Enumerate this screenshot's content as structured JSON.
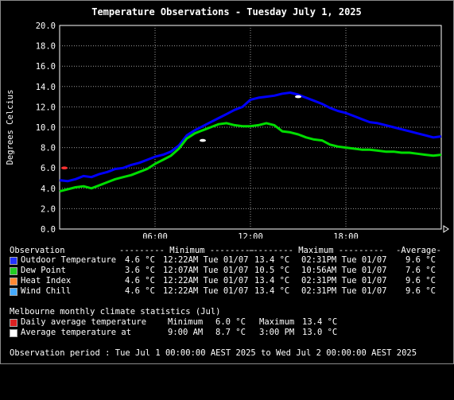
{
  "chart_data": {
    "type": "line",
    "title": "Temperature Observations - Tuesday July 1, 2025",
    "ylabel": "Degrees Celcius",
    "ylim": [
      0,
      20
    ],
    "y_ticks": [
      "0.0",
      "2.0",
      "4.0",
      "6.0",
      "8.0",
      "10.0",
      "12.0",
      "14.0",
      "16.0",
      "18.0",
      "20.0"
    ],
    "x_range_hours": [
      0,
      24
    ],
    "x_ticks": [
      {
        "hour": 6,
        "label": "06:00"
      },
      {
        "hour": 12,
        "label": "12:00"
      },
      {
        "hour": 18,
        "label": "18:00"
      }
    ],
    "grid": true,
    "series": [
      {
        "name": "Outdoor Temperature",
        "color": "#0000ff",
        "x": [
          0,
          0.5,
          1,
          1.5,
          2,
          2.5,
          3,
          3.5,
          4,
          4.5,
          5,
          5.5,
          6,
          6.5,
          7,
          7.5,
          8,
          8.5,
          9,
          9.5,
          10,
          10.5,
          11,
          11.5,
          12,
          12.5,
          13,
          13.5,
          14,
          14.5,
          15,
          15.5,
          16,
          16.5,
          17,
          17.5,
          18,
          18.5,
          19,
          19.5,
          20,
          20.5,
          21,
          21.5,
          22,
          22.5,
          23,
          23.5,
          24
        ],
        "y": [
          4.8,
          4.7,
          4.9,
          5.2,
          5.1,
          5.4,
          5.6,
          5.9,
          6.0,
          6.3,
          6.5,
          6.8,
          7.1,
          7.3,
          7.6,
          8.2,
          9.2,
          9.7,
          10.1,
          10.5,
          10.9,
          11.3,
          11.7,
          12.0,
          12.7,
          12.9,
          13.0,
          13.1,
          13.3,
          13.4,
          13.2,
          12.9,
          12.6,
          12.3,
          11.9,
          11.6,
          11.4,
          11.1,
          10.8,
          10.5,
          10.4,
          10.2,
          10.0,
          9.8,
          9.6,
          9.4,
          9.2,
          9.0,
          9.1
        ]
      },
      {
        "name": "Dew Point",
        "color": "#00dd00",
        "x": [
          0,
          0.5,
          1,
          1.5,
          2,
          2.5,
          3,
          3.5,
          4,
          4.5,
          5,
          5.5,
          6,
          6.5,
          7,
          7.5,
          8,
          8.5,
          9,
          9.5,
          10,
          10.5,
          11,
          11.5,
          12,
          12.5,
          13,
          13.5,
          14,
          14.5,
          15,
          15.5,
          16,
          16.5,
          17,
          17.5,
          18,
          18.5,
          19,
          19.5,
          20,
          20.5,
          21,
          21.5,
          22,
          22.5,
          23,
          23.5,
          24
        ],
        "y": [
          3.7,
          3.9,
          4.1,
          4.2,
          4.0,
          4.3,
          4.6,
          4.9,
          5.1,
          5.3,
          5.6,
          5.9,
          6.4,
          6.8,
          7.2,
          7.9,
          8.9,
          9.4,
          9.7,
          10.0,
          10.3,
          10.4,
          10.2,
          10.1,
          10.1,
          10.2,
          10.4,
          10.2,
          9.6,
          9.5,
          9.3,
          9.0,
          8.8,
          8.7,
          8.3,
          8.1,
          8.0,
          7.9,
          7.8,
          7.8,
          7.7,
          7.6,
          7.6,
          7.5,
          7.5,
          7.4,
          7.3,
          7.2,
          7.3
        ]
      }
    ],
    "markers": [
      {
        "name": "Daily average temperature",
        "color": "#ff3333",
        "hour": 0.3,
        "value": 6.0
      },
      {
        "name": "Average temperature at",
        "color": "#ffffff",
        "hour": 9.0,
        "value": 8.7
      },
      {
        "name": "Average temperature at",
        "color": "#ffffff",
        "hour": 15.0,
        "value": 13.0
      }
    ]
  },
  "legend": {
    "header": {
      "observation": "Observation",
      "minimum": "--------- Minimum ---------",
      "maximum": "--------- Maximum ---------",
      "average": "-Average-"
    },
    "rows": [
      {
        "label": "Outdoor Temperature",
        "color": "#2233ff",
        "min_val": "4.6 °C",
        "min_time": "12:22AM Tue 01/07",
        "max_val": "13.4 °C",
        "max_time": "02:31PM Tue 01/07",
        "avg": "9.6 °C"
      },
      {
        "label": "Dew Point",
        "color": "#22cc22",
        "min_val": "3.6 °C",
        "min_time": "12:07AM Tue 01/07",
        "max_val": "10.5 °C",
        "max_time": "10:56AM Tue 01/07",
        "avg": "7.6 °C"
      },
      {
        "label": "Heat Index",
        "color": "#ff8833",
        "min_val": "4.6 °C",
        "min_time": "12:22AM Tue 01/07",
        "max_val": "13.4 °C",
        "max_time": "02:31PM Tue 01/07",
        "avg": "9.6 °C"
      },
      {
        "label": "Wind Chill",
        "color": "#44aaff",
        "min_val": "4.6 °C",
        "min_time": "12:22AM Tue 01/07",
        "max_val": "13.4 °C",
        "max_time": "02:31PM Tue 01/07",
        "avg": "9.6 °C"
      }
    ]
  },
  "climate": {
    "heading": "Melbourne monthly climate statistics (Jul)",
    "daily": {
      "label": "Daily average temperature",
      "color": "#dd2222",
      "min_label": "Minimum",
      "min_val": "6.0 °C",
      "max_label": "Maximum",
      "max_val": "13.4 °C"
    },
    "at": {
      "label": "Average temperature at",
      "color": "#ffffff",
      "t1": "9:00 AM",
      "v1": "8.7 °C",
      "t2": "3:00 PM",
      "v2": "13.0 °C"
    }
  },
  "period": "Observation period : Tue Jul 1 00:00:00 AEST 2025 to Wed Jul 2 00:00:00 AEST 2025"
}
